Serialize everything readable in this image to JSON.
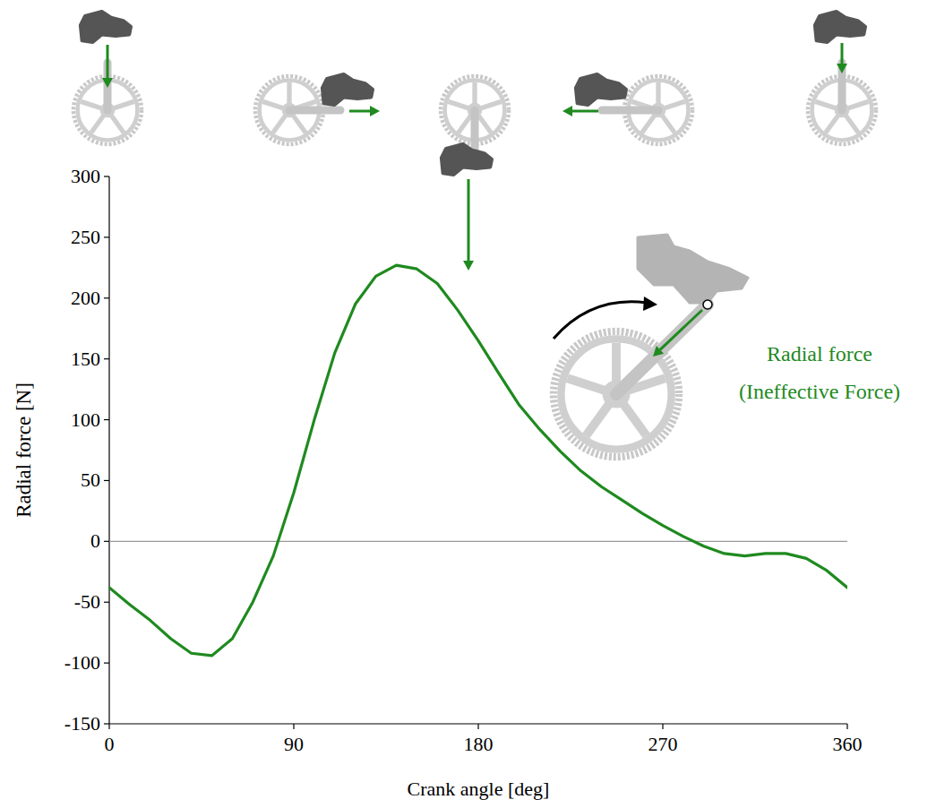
{
  "chart_data": {
    "type": "line",
    "x_label": "Crank angle [deg]",
    "y_label": "Radial force [N]",
    "annotations": [
      "Radial force",
      "(Ineffective Force)"
    ],
    "color": "#1f8a1f",
    "x": [
      0,
      10,
      20,
      30,
      40,
      50,
      60,
      70,
      80,
      90,
      100,
      110,
      120,
      130,
      140,
      150,
      160,
      170,
      180,
      190,
      200,
      210,
      220,
      230,
      240,
      250,
      260,
      270,
      280,
      290,
      300,
      310,
      320,
      330,
      340,
      350,
      360
    ],
    "values": [
      -38,
      -52,
      -65,
      -80,
      -92,
      -94,
      -80,
      -50,
      -12,
      40,
      100,
      155,
      195,
      218,
      227,
      224,
      212,
      190,
      165,
      138,
      112,
      92,
      74,
      58,
      45,
      34,
      23,
      13,
      4,
      -4,
      -10,
      -12,
      -10,
      -10,
      -14,
      -24,
      -38
    ],
    "xlim": [
      0,
      360
    ],
    "xticks": [
      0,
      90,
      180,
      270,
      360
    ],
    "ylim": [
      -150,
      300
    ],
    "yticks": [
      -150,
      -100,
      -50,
      0,
      50,
      100,
      150,
      200,
      250,
      300
    ],
    "grid": false
  }
}
